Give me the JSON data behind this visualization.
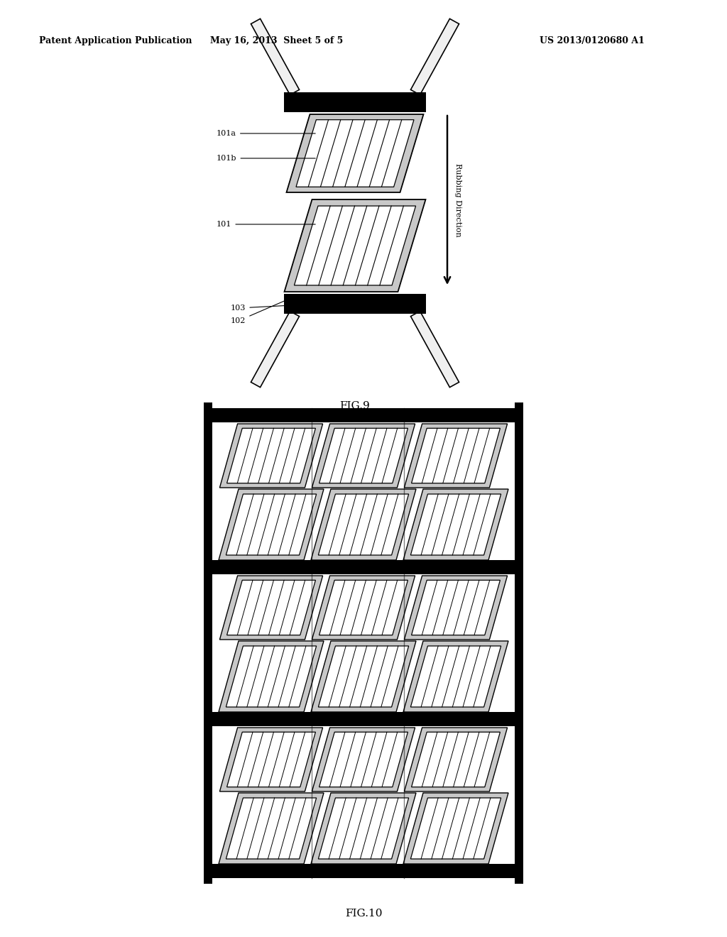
{
  "title_left": "Patent Application Publication",
  "title_center": "May 16, 2013  Sheet 5 of 5",
  "title_right": "US 2013/0120680 A1",
  "fig9_label": "FIG.9",
  "fig10_label": "FIG.10",
  "rubbing_label": "Rubbing Direction",
  "bg_color": "#ffffff",
  "black": "#000000",
  "white": "#ffffff",
  "gray": "#aaaaaa",
  "light_gray": "#e0e0e0"
}
